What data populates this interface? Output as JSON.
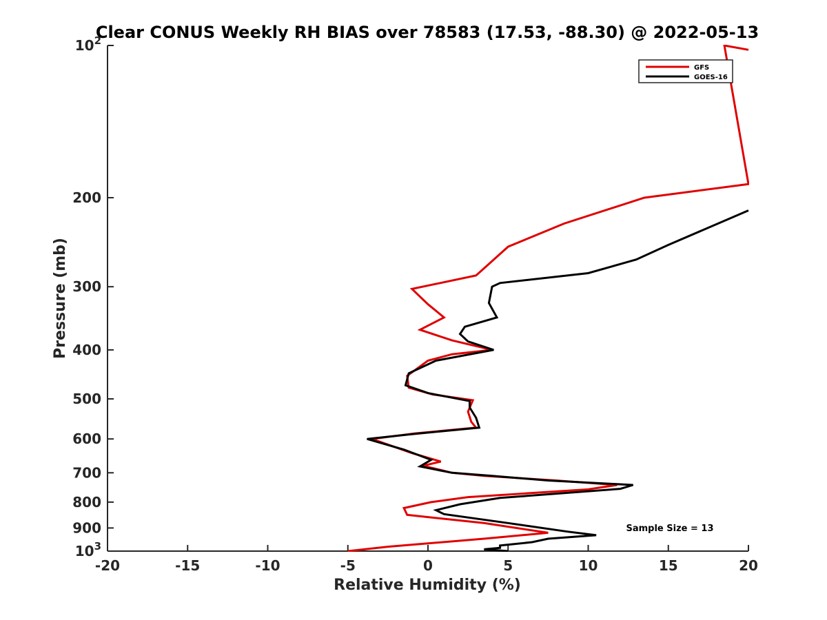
{
  "chart_data": {
    "type": "line",
    "title": "Clear CONUS Weekly RH BIAS over 78583 (17.53, -88.30) @ 2022-05-13",
    "xlabel": "Relative Humidity (%)",
    "ylabel": "Pressure (mb)",
    "xlim": [
      -20,
      20
    ],
    "ylim": [
      100,
      1000
    ],
    "yscale": "log",
    "yreversed": true,
    "x_ticks": [
      "-20",
      "-15",
      "-10",
      "-5",
      "0",
      "5",
      "10",
      "15",
      "20"
    ],
    "y_ticks": [
      {
        "value": 100,
        "base": "10",
        "exp": "2"
      },
      {
        "value": 200,
        "base": "200",
        "exp": ""
      },
      {
        "value": 300,
        "base": "300",
        "exp": ""
      },
      {
        "value": 400,
        "base": "400",
        "exp": ""
      },
      {
        "value": 500,
        "base": "500",
        "exp": ""
      },
      {
        "value": 600,
        "base": "600",
        "exp": ""
      },
      {
        "value": 700,
        "base": "700",
        "exp": ""
      },
      {
        "value": 800,
        "base": "800",
        "exp": ""
      },
      {
        "value": 900,
        "base": "900",
        "exp": ""
      },
      {
        "value": 1000,
        "base": "10",
        "exp": "3"
      }
    ],
    "grid": false,
    "legend": {
      "placement": "top-right"
    },
    "annotations": [
      {
        "text": "Sample Size = 13"
      }
    ],
    "series": [
      {
        "name": "GFS",
        "color": "#e00000",
        "points": [
          {
            "x": 20,
            "p": 102
          },
          {
            "x": 18.5,
            "p": 100
          },
          {
            "x": 20,
            "p": 188
          },
          {
            "x": 13.5,
            "p": 200
          },
          {
            "x": 8.5,
            "p": 225
          },
          {
            "x": 5,
            "p": 250
          },
          {
            "x": 3,
            "p": 285
          },
          {
            "x": -1,
            "p": 303
          },
          {
            "x": 0,
            "p": 325
          },
          {
            "x": 1,
            "p": 345
          },
          {
            "x": -0.5,
            "p": 365
          },
          {
            "x": 1.5,
            "p": 383
          },
          {
            "x": 4,
            "p": 400
          },
          {
            "x": 1.5,
            "p": 408
          },
          {
            "x": 0,
            "p": 420
          },
          {
            "x": -1.3,
            "p": 450
          },
          {
            "x": -1.2,
            "p": 475
          },
          {
            "x": 0.3,
            "p": 490
          },
          {
            "x": 2.8,
            "p": 503
          },
          {
            "x": 2.5,
            "p": 530
          },
          {
            "x": 2.7,
            "p": 555
          },
          {
            "x": 3,
            "p": 570
          },
          {
            "x": -0.8,
            "p": 585
          },
          {
            "x": -3.5,
            "p": 600
          },
          {
            "x": -1,
            "p": 640
          },
          {
            "x": 0.8,
            "p": 665
          },
          {
            "x": -0.3,
            "p": 678
          },
          {
            "x": 1.5,
            "p": 700
          },
          {
            "x": 3.5,
            "p": 710
          },
          {
            "x": 8,
            "p": 725
          },
          {
            "x": 11.8,
            "p": 740
          },
          {
            "x": 10,
            "p": 755
          },
          {
            "x": 2.5,
            "p": 782
          },
          {
            "x": 0.2,
            "p": 800
          },
          {
            "x": -1.5,
            "p": 822
          },
          {
            "x": -1.3,
            "p": 848
          },
          {
            "x": 3.5,
            "p": 880
          },
          {
            "x": 7.5,
            "p": 920
          },
          {
            "x": 3.5,
            "p": 945
          },
          {
            "x": -2.5,
            "p": 980
          },
          {
            "x": -5,
            "p": 1000
          }
        ]
      },
      {
        "name": "GOES-16",
        "color": "#000000",
        "points": [
          {
            "x": 20,
            "p": 212
          },
          {
            "x": 15,
            "p": 248
          },
          {
            "x": 13,
            "p": 265
          },
          {
            "x": 10,
            "p": 282
          },
          {
            "x": 4.5,
            "p": 295
          },
          {
            "x": 4,
            "p": 300
          },
          {
            "x": 3.8,
            "p": 323
          },
          {
            "x": 4.3,
            "p": 345
          },
          {
            "x": 2.3,
            "p": 360
          },
          {
            "x": 2,
            "p": 372
          },
          {
            "x": 2.5,
            "p": 385
          },
          {
            "x": 4.1,
            "p": 400
          },
          {
            "x": 0.5,
            "p": 420
          },
          {
            "x": -1.2,
            "p": 445
          },
          {
            "x": -1.4,
            "p": 470
          },
          {
            "x": 0,
            "p": 487
          },
          {
            "x": 2.6,
            "p": 505
          },
          {
            "x": 2.6,
            "p": 520
          },
          {
            "x": 3,
            "p": 545
          },
          {
            "x": 3.2,
            "p": 570
          },
          {
            "x": -1,
            "p": 587
          },
          {
            "x": -3.8,
            "p": 600
          },
          {
            "x": -1.5,
            "p": 630
          },
          {
            "x": 0.2,
            "p": 660
          },
          {
            "x": -0.5,
            "p": 680
          },
          {
            "x": 1.5,
            "p": 700
          },
          {
            "x": 4,
            "p": 710
          },
          {
            "x": 7.5,
            "p": 725
          },
          {
            "x": 12.8,
            "p": 740
          },
          {
            "x": 12,
            "p": 753
          },
          {
            "x": 4.5,
            "p": 785
          },
          {
            "x": 2,
            "p": 808
          },
          {
            "x": 0.5,
            "p": 830
          },
          {
            "x": 1,
            "p": 845
          },
          {
            "x": 5,
            "p": 880
          },
          {
            "x": 8.7,
            "p": 915
          },
          {
            "x": 10.5,
            "p": 930
          },
          {
            "x": 7.5,
            "p": 945
          },
          {
            "x": 6.5,
            "p": 960
          },
          {
            "x": 4.5,
            "p": 975
          },
          {
            "x": 4.5,
            "p": 985
          },
          {
            "x": 3.5,
            "p": 992
          },
          {
            "x": 5,
            "p": 1000
          }
        ]
      }
    ]
  }
}
